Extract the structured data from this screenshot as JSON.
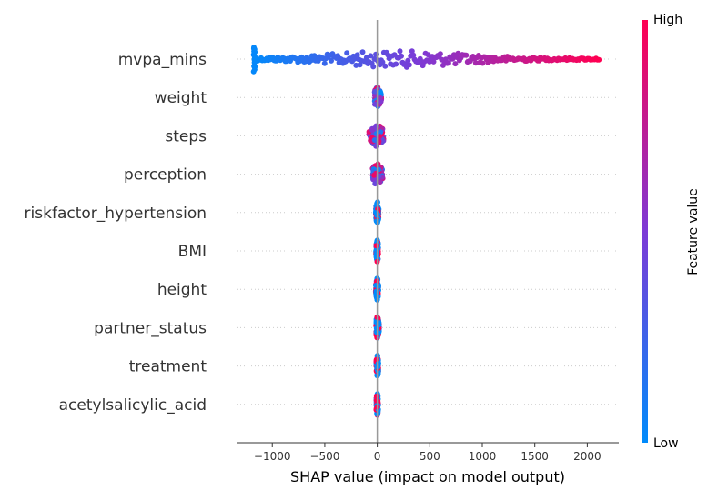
{
  "chart_data": {
    "type": "scatter",
    "subtype": "shap-beeswarm",
    "title": "",
    "xlabel": "SHAP value (impact on model output)",
    "ylabel": "",
    "xlim": [
      -1340,
      2300
    ],
    "xticks": [
      -1000,
      -500,
      0,
      500,
      1000,
      1500,
      2000
    ],
    "xtick_labels": [
      "−1000",
      "−500",
      "0",
      "500",
      "1000",
      "1500",
      "2000"
    ],
    "zero_line": 0,
    "features": [
      "mvpa_mins",
      "weight",
      "steps",
      "perception",
      "riskfactor_hypertension",
      "BMI",
      "height",
      "partner_status",
      "treatment",
      "acetylsalicylic_acid"
    ],
    "feature_ranges": [
      {
        "feature": "mvpa_mins",
        "min": -1170,
        "max": 2110
      },
      {
        "feature": "weight",
        "min": -25,
        "max": 40
      },
      {
        "feature": "steps",
        "min": -80,
        "max": 60
      },
      {
        "feature": "perception",
        "min": -45,
        "max": 55
      },
      {
        "feature": "riskfactor_hypertension",
        "min": -15,
        "max": 15
      },
      {
        "feature": "BMI",
        "min": -12,
        "max": 10
      },
      {
        "feature": "height",
        "min": -15,
        "max": 12
      },
      {
        "feature": "partner_status",
        "min": -12,
        "max": 18
      },
      {
        "feature": "treatment",
        "min": -10,
        "max": 12
      },
      {
        "feature": "acetylsalicylic_acid",
        "min": -10,
        "max": 10
      }
    ],
    "colorbar": {
      "label": "Feature value",
      "high_label": "High",
      "low_label": "Low",
      "low_color": "#008bfb",
      "mid_color": "#7d3ad6",
      "high_color": "#ff0052"
    },
    "grid": false,
    "legend": "colorbar-right"
  }
}
